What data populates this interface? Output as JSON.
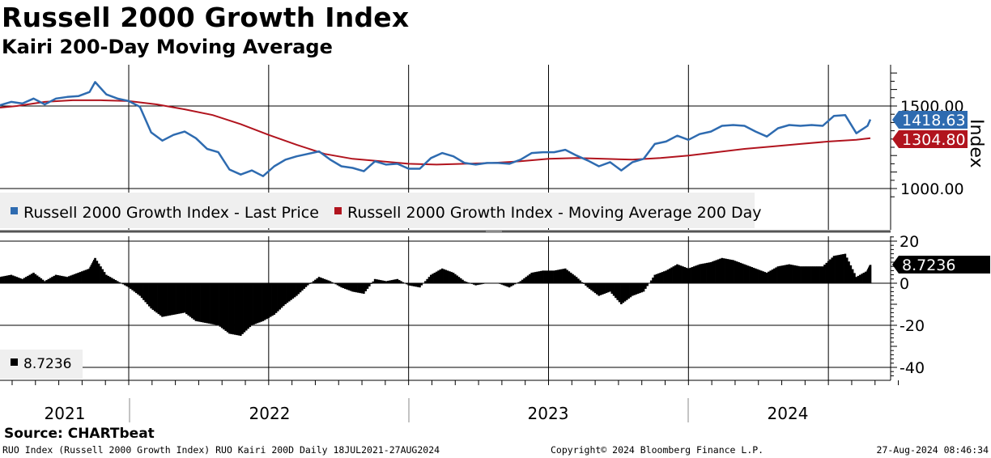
{
  "header": {
    "title": "Russell 2000 Growth Index",
    "subtitle": "Kairi 200-Day Moving Average"
  },
  "footer": {
    "source": "Source: CHARTbeat",
    "left": "RUO Index (Russell 2000 Growth Index) RUO Kairi 200D  Daily 18JUL2021-27AUG2024",
    "center": "Copyright© 2024 Bloomberg Finance L.P.",
    "right": "27-Aug-2024 08:46:34"
  },
  "colors": {
    "price": "#2e6bb0",
    "ma": "#b1141e",
    "kairi": "#000000",
    "grid": "#000000"
  },
  "chart_data": [
    {
      "type": "line",
      "x_labels": [
        "2021",
        "2022",
        "2023",
        "2024"
      ],
      "ylabel": "Index",
      "y_ticks": [
        "1500.00",
        "1000.00"
      ],
      "ylim": [
        900,
        1720
      ],
      "legend": [
        "Russell 2000 Growth Index - Last Price",
        "Russell 2000 Growth Index - Moving Average 200 Day"
      ],
      "legend_position": "bottom-left",
      "last_price_label": "1418.63",
      "last_ma_label": "1304.80",
      "series": [
        {
          "name": "Russell 2000 Growth Index - Last Price",
          "color": "#2e6bb0",
          "x": [
            2021.54,
            2021.58,
            2021.62,
            2021.66,
            2021.7,
            2021.74,
            2021.78,
            2021.82,
            2021.86,
            2021.88,
            2021.92,
            2021.96,
            2022.0,
            2022.04,
            2022.08,
            2022.12,
            2022.16,
            2022.2,
            2022.24,
            2022.28,
            2022.32,
            2022.36,
            2022.4,
            2022.44,
            2022.48,
            2022.52,
            2022.56,
            2022.6,
            2022.64,
            2022.68,
            2022.72,
            2022.76,
            2022.8,
            2022.84,
            2022.88,
            2022.92,
            2022.96,
            2023.0,
            2023.04,
            2023.08,
            2023.12,
            2023.16,
            2023.2,
            2023.24,
            2023.28,
            2023.32,
            2023.36,
            2023.4,
            2023.44,
            2023.48,
            2023.52,
            2023.56,
            2023.6,
            2023.64,
            2023.68,
            2023.72,
            2023.76,
            2023.8,
            2023.84,
            2023.88,
            2023.92,
            2023.96,
            2024.0,
            2024.04,
            2024.08,
            2024.12,
            2024.16,
            2024.2,
            2024.24,
            2024.28,
            2024.32,
            2024.36,
            2024.4,
            2024.44,
            2024.48,
            2024.52,
            2024.56,
            2024.6,
            2024.64,
            2024.65
          ],
          "values": [
            1505,
            1525,
            1515,
            1545,
            1510,
            1545,
            1555,
            1560,
            1585,
            1645,
            1570,
            1545,
            1530,
            1495,
            1340,
            1290,
            1325,
            1345,
            1305,
            1240,
            1220,
            1115,
            1085,
            1110,
            1075,
            1135,
            1175,
            1195,
            1210,
            1225,
            1175,
            1135,
            1125,
            1105,
            1165,
            1145,
            1150,
            1120,
            1120,
            1185,
            1215,
            1195,
            1155,
            1145,
            1155,
            1155,
            1150,
            1175,
            1215,
            1220,
            1220,
            1235,
            1200,
            1170,
            1135,
            1160,
            1110,
            1160,
            1180,
            1270,
            1285,
            1320,
            1295,
            1330,
            1345,
            1380,
            1385,
            1380,
            1345,
            1315,
            1365,
            1385,
            1380,
            1385,
            1380,
            1440,
            1445,
            1335,
            1380,
            1418.63
          ]
        },
        {
          "name": "Russell 2000 Growth Index - Moving Average 200 Day",
          "color": "#b1141e",
          "x": [
            2021.54,
            2021.6,
            2021.7,
            2021.8,
            2021.9,
            2022.0,
            2022.1,
            2022.2,
            2022.3,
            2022.4,
            2022.5,
            2022.6,
            2022.7,
            2022.8,
            2022.9,
            2023.0,
            2023.1,
            2023.2,
            2023.3,
            2023.4,
            2023.5,
            2023.6,
            2023.7,
            2023.8,
            2023.9,
            2024.0,
            2024.1,
            2024.2,
            2024.3,
            2024.4,
            2024.5,
            2024.6,
            2024.65
          ],
          "values": [
            1490,
            1500,
            1525,
            1535,
            1535,
            1530,
            1510,
            1480,
            1445,
            1390,
            1325,
            1265,
            1210,
            1180,
            1165,
            1150,
            1145,
            1150,
            1155,
            1165,
            1180,
            1185,
            1180,
            1175,
            1185,
            1200,
            1220,
            1240,
            1255,
            1270,
            1285,
            1295,
            1304.8
          ]
        }
      ]
    },
    {
      "type": "bar",
      "ylabel": "",
      "y_ticks": [
        "20",
        "0",
        "-20",
        "-40"
      ],
      "ylim": [
        -44,
        23
      ],
      "legend": [
        "8.7236"
      ],
      "legend_position": "bottom-left",
      "last_value_label": "8.7236",
      "series": [
        {
          "name": "Kairi 200D",
          "color": "#000000",
          "x": [
            2021.54,
            2021.58,
            2021.62,
            2021.66,
            2021.7,
            2021.74,
            2021.78,
            2021.82,
            2021.86,
            2021.88,
            2021.92,
            2021.96,
            2022.0,
            2022.04,
            2022.08,
            2022.12,
            2022.16,
            2022.2,
            2022.24,
            2022.28,
            2022.32,
            2022.36,
            2022.4,
            2022.44,
            2022.48,
            2022.52,
            2022.56,
            2022.6,
            2022.64,
            2022.68,
            2022.72,
            2022.76,
            2022.8,
            2022.84,
            2022.88,
            2022.92,
            2022.96,
            2023.0,
            2023.04,
            2023.08,
            2023.12,
            2023.16,
            2023.2,
            2023.24,
            2023.28,
            2023.32,
            2023.36,
            2023.4,
            2023.44,
            2023.48,
            2023.52,
            2023.56,
            2023.6,
            2023.64,
            2023.68,
            2023.72,
            2023.76,
            2023.8,
            2023.84,
            2023.88,
            2023.92,
            2023.96,
            2024.0,
            2024.04,
            2024.08,
            2024.12,
            2024.16,
            2024.2,
            2024.24,
            2024.28,
            2024.32,
            2024.36,
            2024.4,
            2024.44,
            2024.48,
            2024.52,
            2024.56,
            2024.6,
            2024.64,
            2024.65
          ],
          "values": [
            3,
            4,
            2,
            5,
            1,
            4,
            3,
            5,
            7,
            12,
            4,
            1,
            -2,
            -6,
            -12,
            -16,
            -15,
            -14,
            -18,
            -19,
            -20,
            -24,
            -25,
            -20,
            -18,
            -15,
            -10,
            -6,
            -1,
            3,
            1,
            -2,
            -4,
            -5,
            2,
            1,
            2,
            -1,
            -2,
            4,
            7,
            5,
            1,
            -1,
            0,
            0,
            -2,
            1,
            5,
            6,
            6,
            7,
            3,
            -2,
            -6,
            -4,
            -10,
            -6,
            -4,
            4,
            6,
            9,
            7,
            9,
            10,
            12,
            11,
            9,
            7,
            5,
            8,
            9,
            8,
            8,
            8,
            13,
            14,
            3,
            6,
            8.7236
          ]
        }
      ]
    }
  ]
}
